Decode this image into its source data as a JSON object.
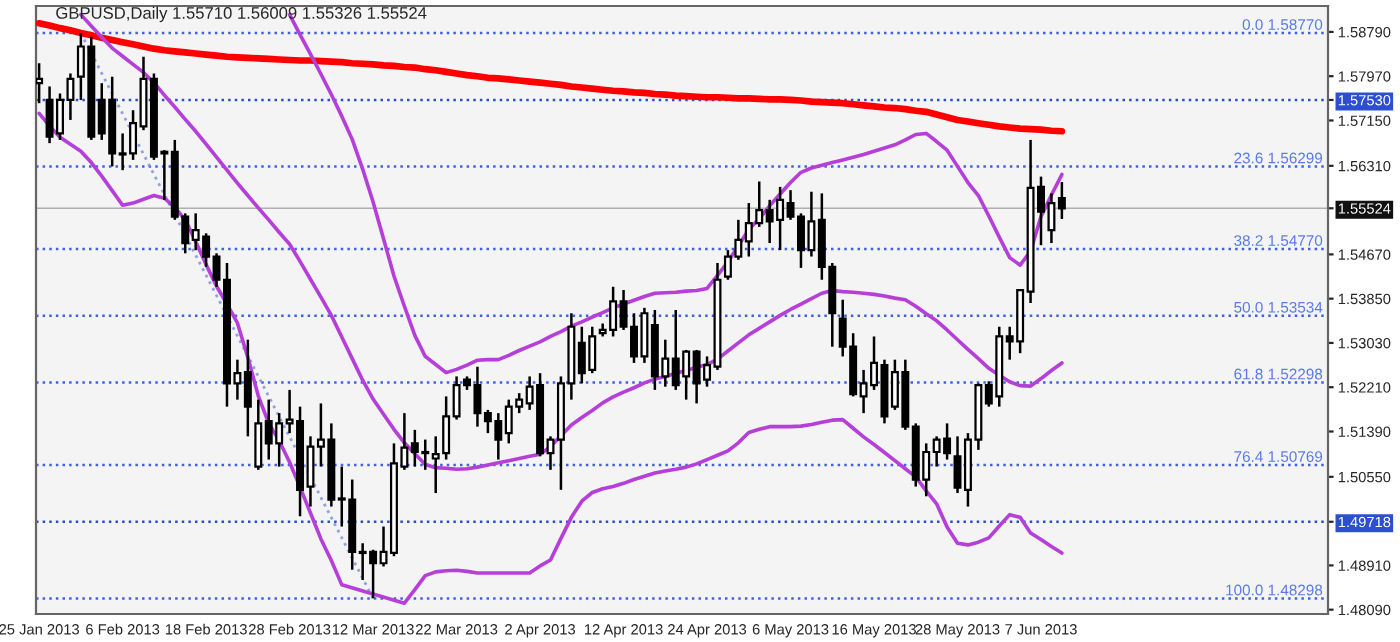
{
  "chart_data": {
    "type": "candlestick",
    "title": "GBPUSD,Daily 1.55710 1.56009 1.55326 1.55524",
    "categories": [
      "25 Jan 2013",
      null,
      null,
      null,
      null,
      null,
      null,
      null,
      "6 Feb 2013",
      null,
      null,
      null,
      null,
      null,
      null,
      null,
      "18 Feb 2013",
      null,
      null,
      null,
      null,
      null,
      null,
      null,
      "28 Feb 2013",
      null,
      null,
      null,
      null,
      null,
      null,
      null,
      "12 Mar 2013",
      null,
      null,
      null,
      null,
      null,
      null,
      null,
      "22 Mar 2013",
      null,
      null,
      null,
      null,
      null,
      null,
      null,
      "2 Apr 2013",
      null,
      null,
      null,
      null,
      null,
      null,
      null,
      "12 Apr 2013",
      null,
      null,
      null,
      null,
      null,
      null,
      null,
      "24 Apr 2013",
      null,
      null,
      null,
      null,
      null,
      null,
      null,
      "6 May 2013",
      null,
      null,
      null,
      null,
      null,
      null,
      null,
      "16 May 2013",
      null,
      null,
      null,
      null,
      null,
      null,
      null,
      "28 May 2013",
      null,
      null,
      null,
      null,
      null,
      null,
      null,
      "7 Jun 2013",
      null,
      null
    ],
    "ohlc": [
      [
        1.5784,
        1.5821,
        1.5747,
        1.5792
      ],
      [
        1.5753,
        1.5778,
        1.5673,
        1.5685
      ],
      [
        1.5691,
        1.5765,
        1.5679,
        1.5753
      ],
      [
        1.5753,
        1.5802,
        1.5716,
        1.5792
      ],
      [
        1.5796,
        1.5877,
        1.5753,
        1.5852
      ],
      [
        1.5852,
        1.587,
        1.5679,
        1.5685
      ],
      [
        1.5753,
        1.5784,
        1.5679,
        1.5691
      ],
      [
        1.5753,
        1.5796,
        1.563,
        1.5654
      ],
      [
        1.5654,
        1.5691,
        1.5623,
        1.5652
      ],
      [
        1.5654,
        1.5734,
        1.5642,
        1.571
      ],
      [
        1.5704,
        1.5833,
        1.5697,
        1.5792
      ],
      [
        1.5792,
        1.5802,
        1.5642,
        1.5648
      ],
      [
        1.5657,
        1.566,
        1.5568,
        1.5654
      ],
      [
        1.5657,
        1.5679,
        1.5531,
        1.5537
      ],
      [
        1.5537,
        1.5543,
        1.5469,
        1.5488
      ],
      [
        1.5494,
        1.5543,
        1.5475,
        1.5512
      ],
      [
        1.55,
        1.5506,
        1.5444,
        1.5463
      ],
      [
        1.5463,
        1.5469,
        1.5407,
        1.542
      ],
      [
        1.542,
        1.5451,
        1.5185,
        1.5228
      ],
      [
        1.5228,
        1.5272,
        1.5198,
        1.5247
      ],
      [
        1.5249,
        1.5309,
        1.513,
        1.5185
      ],
      [
        1.5074,
        1.5198,
        1.5068,
        1.5154
      ],
      [
        1.5158,
        1.5198,
        1.5087,
        1.5117
      ],
      [
        1.5117,
        1.5173,
        1.5074,
        1.5154
      ],
      [
        1.5154,
        1.5216,
        1.5136,
        1.5161
      ],
      [
        1.5158,
        1.5185,
        1.4982,
        1.5031
      ],
      [
        1.5037,
        1.513,
        1.5,
        1.5111
      ],
      [
        1.5111,
        1.5191,
        1.5074,
        1.5124
      ],
      [
        1.5124,
        1.5154,
        1.5,
        1.5013
      ],
      [
        1.5015,
        1.5074,
        1.4963,
        1.5013
      ],
      [
        1.5013,
        1.505,
        1.4883,
        1.4916
      ],
      [
        1.4916,
        1.4932,
        1.4864,
        1.4914
      ],
      [
        1.4916,
        1.492,
        1.483,
        1.4895
      ],
      [
        1.4895,
        1.4963,
        1.4889,
        1.4916
      ],
      [
        1.4914,
        1.5117,
        1.4908,
        1.508
      ],
      [
        1.5074,
        1.5173,
        1.5068,
        1.5109
      ],
      [
        1.5117,
        1.5142,
        1.5074,
        1.5101
      ],
      [
        1.5101,
        1.5124,
        1.5068,
        1.5099
      ],
      [
        1.5089,
        1.513,
        1.5025,
        1.5097
      ],
      [
        1.5099,
        1.5204,
        1.5087,
        1.5167
      ],
      [
        1.5167,
        1.5241,
        1.5161,
        1.5225
      ],
      [
        1.5235,
        1.5241,
        1.5216,
        1.5225
      ],
      [
        1.5225,
        1.5259,
        1.5148,
        1.5173
      ],
      [
        1.5173,
        1.5179,
        1.5136,
        1.5158
      ],
      [
        1.5158,
        1.5173,
        1.5087,
        1.5124
      ],
      [
        1.5136,
        1.5198,
        1.5117,
        1.5185
      ],
      [
        1.5185,
        1.521,
        1.5173,
        1.5198
      ],
      [
        1.5191,
        1.5241,
        1.5179,
        1.5222
      ],
      [
        1.5225,
        1.5247,
        1.5093,
        1.5099
      ],
      [
        1.5099,
        1.513,
        1.5068,
        1.5124
      ],
      [
        1.5124,
        1.5241,
        1.5031,
        1.5228
      ],
      [
        1.5228,
        1.5358,
        1.5198,
        1.5333
      ],
      [
        1.5303,
        1.5333,
        1.5228,
        1.5247
      ],
      [
        1.5253,
        1.5333,
        1.5247,
        1.5315
      ],
      [
        1.5321,
        1.5339,
        1.5315,
        1.5327
      ],
      [
        1.5327,
        1.5407,
        1.5315,
        1.538
      ],
      [
        1.538,
        1.5401,
        1.5327,
        1.5333
      ],
      [
        1.5333,
        1.5358,
        1.5266,
        1.5278
      ],
      [
        1.5278,
        1.5368,
        1.5266,
        1.5358
      ],
      [
        1.5336,
        1.5364,
        1.5216,
        1.5241
      ],
      [
        1.5241,
        1.5309,
        1.5222,
        1.5274
      ],
      [
        1.5274,
        1.5364,
        1.5216,
        1.5225
      ],
      [
        1.5241,
        1.529,
        1.5198,
        1.5287
      ],
      [
        1.5287,
        1.529,
        1.5191,
        1.5228
      ],
      [
        1.5235,
        1.5278,
        1.5222,
        1.5262
      ],
      [
        1.5259,
        1.5451,
        1.5253,
        1.542
      ],
      [
        1.5426,
        1.5475,
        1.542,
        1.5463
      ],
      [
        1.5463,
        1.5531,
        1.5457,
        1.5494
      ],
      [
        1.5491,
        1.5562,
        1.5463,
        1.5525
      ],
      [
        1.5525,
        1.5602,
        1.5518,
        1.5549
      ],
      [
        1.5549,
        1.5568,
        1.5488,
        1.5528
      ],
      [
        1.5531,
        1.5592,
        1.5475,
        1.5568
      ],
      [
        1.5562,
        1.5586,
        1.5531,
        1.5537
      ],
      [
        1.5537,
        1.5543,
        1.5442,
        1.5475
      ],
      [
        1.5475,
        1.5583,
        1.5463,
        1.5528
      ],
      [
        1.5531,
        1.558,
        1.542,
        1.5444
      ],
      [
        1.5444,
        1.5451,
        1.5296,
        1.5358
      ],
      [
        1.5348,
        1.5383,
        1.5278,
        1.5296
      ],
      [
        1.5296,
        1.5321,
        1.5204,
        1.5208
      ],
      [
        1.5204,
        1.5253,
        1.5173,
        1.5228
      ],
      [
        1.5225,
        1.5315,
        1.5216,
        1.5266
      ],
      [
        1.5262,
        1.5272,
        1.5154,
        1.5167
      ],
      [
        1.5185,
        1.5272,
        1.5179,
        1.5249
      ],
      [
        1.5249,
        1.5272,
        1.5142,
        1.5148
      ],
      [
        1.5148,
        1.5154,
        1.5037,
        1.505
      ],
      [
        1.505,
        1.5117,
        1.5019,
        1.5101
      ],
      [
        1.5101,
        1.513,
        1.5074,
        1.5124
      ],
      [
        1.5126,
        1.5154,
        1.5087,
        1.5099
      ],
      [
        1.5093,
        1.513,
        1.5025,
        1.5035
      ],
      [
        1.5031,
        1.5136,
        1.5,
        1.5124
      ],
      [
        1.5124,
        1.5228,
        1.5105,
        1.5225
      ],
      [
        1.5225,
        1.5232,
        1.5185,
        1.5191
      ],
      [
        1.5204,
        1.5333,
        1.5185,
        1.5315
      ],
      [
        1.5315,
        1.5333,
        1.5272,
        1.5306
      ],
      [
        1.5306,
        1.5401,
        1.5284,
        1.5401
      ],
      [
        1.5398,
        1.5679,
        1.5377,
        1.559
      ],
      [
        1.5592,
        1.5611,
        1.5484,
        1.5546
      ],
      [
        1.5512,
        1.558,
        1.5488,
        1.5562
      ],
      [
        1.5571,
        1.56009,
        1.55326,
        1.55524
      ]
    ],
    "series": [
      {
        "type": "line",
        "color": "#ff0000",
        "values": [
          1.5895,
          1.5891,
          1.5886,
          1.5882,
          1.5877,
          1.5873,
          1.5868,
          1.5864,
          1.586,
          1.5856,
          1.5852,
          1.5848,
          1.5845,
          1.5843,
          1.5841,
          1.5839,
          1.5837,
          1.5835,
          1.5833,
          1.5832,
          1.5831,
          1.583,
          1.5829,
          1.5828,
          1.5827,
          1.5826,
          1.5826,
          1.5825,
          1.5824,
          1.5823,
          1.5821,
          1.582,
          1.5819,
          1.5817,
          1.5816,
          1.5814,
          1.5813,
          1.581,
          1.5808,
          1.5805,
          1.5802,
          1.5799,
          1.5797,
          1.5794,
          1.5793,
          1.5791,
          1.5789,
          1.5787,
          1.5785,
          1.5783,
          1.5781,
          1.5778,
          1.5776,
          1.5774,
          1.5772,
          1.577,
          1.5769,
          1.5767,
          1.5766,
          1.5764,
          1.5763,
          1.5761,
          1.576,
          1.5759,
          1.5758,
          1.5758,
          1.5757,
          1.5756,
          1.5756,
          1.5755,
          1.5754,
          1.5754,
          1.5753,
          1.5752,
          1.575,
          1.5749,
          1.5748,
          1.5747,
          1.5745,
          1.5743,
          1.5741,
          1.5739,
          1.5738,
          1.5736,
          1.5733,
          1.5731,
          1.5726,
          1.5721,
          1.5716,
          1.5713,
          1.571,
          1.5707,
          1.5704,
          1.5702,
          1.57,
          1.5699,
          1.5698,
          1.5696,
          1.5695
        ]
      },
      {
        "type": "line",
        "color": "#b53fd8",
        "values": [
          null,
          null,
          null,
          null,
          1.5911,
          1.589,
          1.5869,
          1.5849,
          1.5834,
          1.5819,
          1.5804,
          1.5785,
          1.5762,
          1.574,
          1.5717,
          1.5695,
          1.5671,
          1.5647,
          1.5623,
          1.5599,
          1.5576,
          1.5553,
          1.5531,
          1.5508,
          1.5486,
          1.5454,
          1.5421,
          1.5388,
          1.5354,
          1.5314,
          1.5274,
          1.5234,
          1.5199,
          1.5171,
          1.5143,
          1.5118,
          1.5098,
          1.5078,
          1.5072,
          1.5071,
          1.5069,
          1.507,
          1.5073,
          1.5077,
          1.5081,
          1.5085,
          1.5089,
          1.5093,
          1.5097,
          1.5111,
          1.5131,
          1.5151,
          1.5165,
          1.5178,
          1.5192,
          1.5203,
          1.5212,
          1.522,
          1.5229,
          1.5236,
          1.5241,
          1.5247,
          1.5252,
          1.5258,
          1.5263,
          1.5273,
          1.5288,
          1.5303,
          1.5318,
          1.533,
          1.5342,
          1.5354,
          1.5365,
          1.5375,
          1.5385,
          1.5395,
          1.54,
          1.5398,
          1.5397,
          1.5395,
          1.5393,
          1.539,
          1.5386,
          1.5383,
          1.5371,
          1.5357,
          1.5344,
          1.5327,
          1.5309,
          1.5291,
          1.5274,
          1.5256,
          1.5243,
          1.5231,
          1.5224,
          1.5223,
          1.5237,
          1.5252,
          1.5266
        ]
      },
      {
        "type": "line",
        "color": "#b53fd8",
        "values": [
          null,
          null,
          null,
          null,
          null,
          null,
          null,
          null,
          null,
          null,
          null,
          null,
          null,
          null,
          null,
          null,
          null,
          null,
          null,
          null,
          null,
          null,
          null,
          null,
          1.5911,
          1.5874,
          1.5838,
          1.5801,
          1.5763,
          1.5723,
          1.568,
          1.5625,
          1.5564,
          1.5496,
          1.5427,
          1.5371,
          1.5317,
          1.5278,
          1.5263,
          1.5248,
          1.5254,
          1.5262,
          1.5271,
          1.5272,
          1.5272,
          1.528,
          1.5289,
          1.5297,
          1.5305,
          1.5315,
          1.5324,
          1.5334,
          1.5342,
          1.5351,
          1.5359,
          1.5368,
          1.5375,
          1.5382,
          1.5389,
          1.5395,
          1.5396,
          1.5397,
          1.5399,
          1.54,
          1.5404,
          1.5428,
          1.5453,
          1.5483,
          1.5513,
          1.5533,
          1.5557,
          1.5579,
          1.56,
          1.5619,
          1.5627,
          1.5632,
          1.5637,
          1.5642,
          1.5647,
          1.5652,
          1.5658,
          1.5664,
          1.567,
          1.5679,
          1.5689,
          1.5691,
          1.5676,
          1.566,
          1.563,
          1.56,
          1.5576,
          1.5538,
          1.5499,
          1.5461,
          1.5447,
          1.5473,
          1.5537,
          1.5577,
          1.5615
        ]
      },
      {
        "type": "line",
        "color": "#b53fd8",
        "values": [
          1.5728,
          1.5705,
          1.5684,
          1.5671,
          1.5658,
          1.5637,
          1.5612,
          1.5585,
          1.5558,
          1.5562,
          1.5569,
          1.5576,
          1.5571,
          1.5554,
          1.5531,
          1.5491,
          1.5448,
          1.5408,
          1.5375,
          1.534,
          1.5276,
          1.5205,
          1.5154,
          1.5122,
          1.5082,
          1.5036,
          1.4988,
          1.494,
          1.49,
          1.4855,
          null,
          null,
          null,
          null,
          null,
          1.4821,
          1.4846,
          1.4872,
          1.4879,
          1.4881,
          1.4882,
          1.488,
          1.4877,
          1.4877,
          1.4877,
          1.4877,
          1.4877,
          1.4877,
          1.489,
          1.4901,
          1.4941,
          1.498,
          1.501,
          1.5026,
          1.5033,
          1.5037,
          1.5043,
          1.505,
          1.5056,
          1.5062,
          1.5066,
          1.5069,
          1.5073,
          1.5079,
          1.5087,
          1.5095,
          1.5103,
          1.5118,
          1.5137,
          1.5143,
          1.5148,
          1.5148,
          1.5148,
          1.5149,
          1.5152,
          1.5156,
          1.516,
          1.5161,
          1.5145,
          1.5129,
          1.5115,
          1.51,
          1.5085,
          1.507,
          1.5055,
          1.5029,
          1.5005,
          1.4962,
          1.4932,
          1.4929,
          1.4934,
          1.4942,
          1.4964,
          1.4985,
          1.498,
          1.4951,
          1.4939,
          1.4926,
          1.4914
        ]
      }
    ],
    "ref_lines": [
      {
        "axis": "y",
        "value": 1.5877,
        "label": "0.0 1.58770",
        "color": "#3f63e0",
        "line_style": "dotted"
      },
      {
        "axis": "y",
        "value": 1.56299,
        "label": "23.6 1.56299",
        "color": "#3f63e0",
        "line_style": "dotted"
      },
      {
        "axis": "y",
        "value": 1.5477,
        "label": "38.2 1.54770",
        "color": "#3f63e0",
        "line_style": "dotted"
      },
      {
        "axis": "y",
        "value": 1.53534,
        "label": "50.0 1.53534",
        "color": "#3f63e0",
        "line_style": "dotted"
      },
      {
        "axis": "y",
        "value": 1.52298,
        "label": "61.8 1.52298",
        "color": "#3f63e0",
        "line_style": "dotted"
      },
      {
        "axis": "y",
        "value": 1.50769,
        "label": "76.4 1.50769",
        "color": "#3f63e0",
        "line_style": "dotted"
      },
      {
        "axis": "y",
        "value": 1.48298,
        "label": "100.0 1.48298",
        "color": "#3f63e0",
        "line_style": "dotted"
      },
      {
        "axis": "y",
        "value": 1.5753,
        "color": "#2b4fd0",
        "line_style": "dotted"
      },
      {
        "axis": "y",
        "value": 1.49718,
        "color": "#2b4fd0",
        "line_style": "dotted"
      },
      {
        "axis": "y",
        "value": 1.55524,
        "color": "#111111",
        "line_style": "solid"
      }
    ],
    "ylim": [
      1.4801,
      1.5927
    ],
    "yticks": [
      {
        "value": 1.5879,
        "label": "1.58790"
      },
      {
        "value": 1.5797,
        "label": "1.57970"
      },
      {
        "value": 1.5753,
        "label": "1.57530"
      },
      {
        "value": 1.5715,
        "label": "1.57150"
      },
      {
        "value": 1.5631,
        "label": "1.56310"
      },
      {
        "value": 1.55524,
        "label": "1.55524"
      },
      {
        "value": 1.5467,
        "label": "1.54670"
      },
      {
        "value": 1.5385,
        "label": "1.53850"
      },
      {
        "value": 1.5303,
        "label": "1.53030"
      },
      {
        "value": 1.5221,
        "label": "1.52210"
      },
      {
        "value": 1.5139,
        "label": "1.51390"
      },
      {
        "value": 1.5055,
        "label": "1.50550"
      },
      {
        "value": 1.49718,
        "label": "1.49718"
      },
      {
        "value": 1.4891,
        "label": "1.48910"
      },
      {
        "value": 1.4809,
        "label": "1.48090"
      }
    ]
  }
}
